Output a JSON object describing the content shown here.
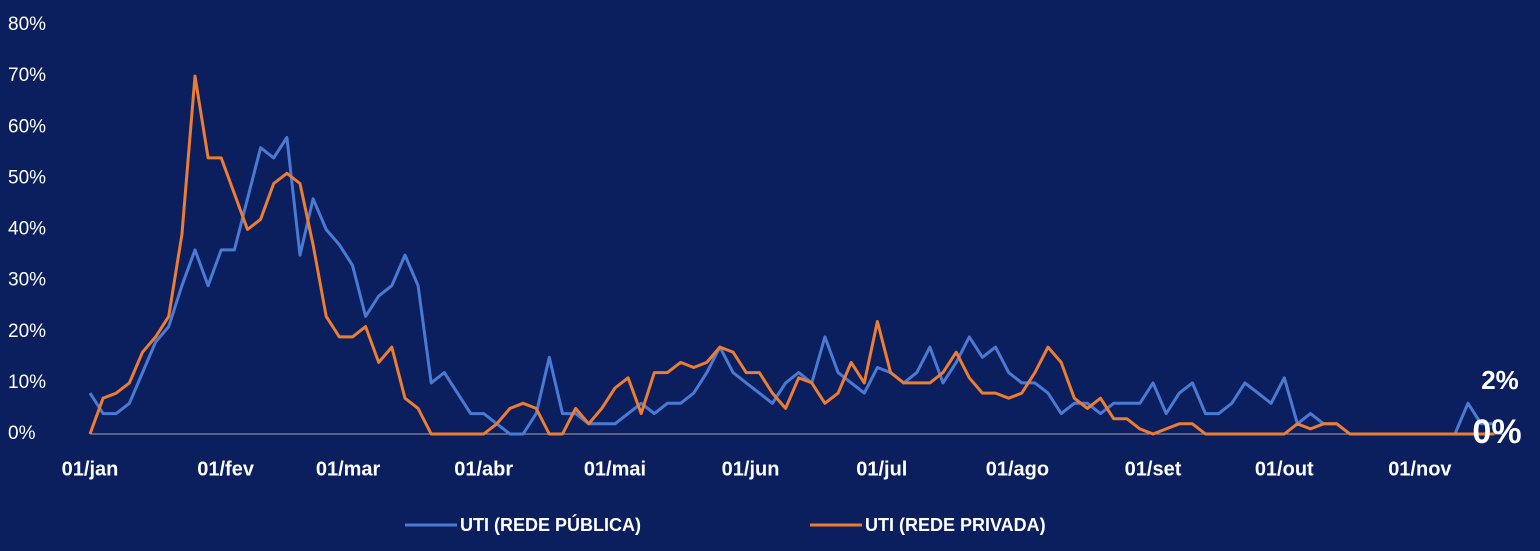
{
  "chart_data": {
    "type": "line",
    "x": [
      0,
      3,
      6,
      9,
      12,
      15,
      18,
      21,
      24,
      27,
      30,
      33,
      36,
      39,
      42,
      45,
      48,
      51,
      54,
      57,
      60,
      63,
      66,
      69,
      72,
      75,
      78,
      81,
      84,
      87,
      90,
      93,
      96,
      99,
      102,
      105,
      108,
      111,
      114,
      117,
      120,
      123,
      126,
      129,
      132,
      135,
      138,
      141,
      144,
      147,
      150,
      153,
      156,
      159,
      162,
      165,
      168,
      171,
      174,
      177,
      180,
      183,
      186,
      189,
      192,
      195,
      198,
      201,
      204,
      207,
      210,
      213,
      216,
      219,
      222,
      225,
      228,
      231,
      234,
      237,
      240,
      243,
      246,
      249,
      252,
      255,
      258,
      261,
      264,
      267,
      270,
      273,
      276,
      279,
      282,
      285,
      288,
      291,
      294,
      297,
      300,
      303,
      306,
      309,
      312,
      315,
      318,
      321
    ],
    "series": [
      {
        "name": "UTI (REDE PÚBLICA)",
        "color": "#4a7bd4",
        "values": [
          8,
          4,
          4,
          6,
          12,
          18,
          21,
          29,
          36,
          29,
          36,
          36,
          46,
          56,
          54,
          58,
          35,
          46,
          40,
          37,
          33,
          23,
          27,
          29,
          35,
          29,
          10,
          12,
          8,
          4,
          4,
          2,
          0,
          0,
          4,
          15,
          4,
          4,
          2,
          2,
          2,
          4,
          6,
          4,
          6,
          6,
          8,
          12,
          17,
          12,
          10,
          8,
          6,
          10,
          12,
          10,
          19,
          12,
          10,
          8,
          13,
          12,
          10,
          12,
          17,
          10,
          14,
          19,
          15,
          17,
          12,
          10,
          10,
          8,
          4,
          6,
          6,
          4,
          6,
          6,
          6,
          10,
          4,
          8,
          10,
          4,
          4,
          6,
          10,
          8,
          6,
          11,
          2,
          4,
          2,
          2,
          0,
          0,
          0,
          0,
          0,
          0,
          0,
          0,
          0,
          6,
          2,
          2
        ]
      },
      {
        "name": "UTI (REDE PRIVADA)",
        "color": "#ed7d31",
        "values": [
          0,
          7,
          8,
          10,
          16,
          19,
          23,
          39,
          70,
          54,
          54,
          47,
          40,
          42,
          49,
          51,
          49,
          37,
          23,
          19,
          19,
          21,
          14,
          17,
          7,
          5,
          0,
          0,
          0,
          0,
          0,
          2,
          5,
          6,
          5,
          0,
          0,
          5,
          2,
          5,
          9,
          11,
          4,
          12,
          12,
          14,
          13,
          14,
          17,
          16,
          12,
          12,
          8,
          5,
          11,
          10,
          6,
          8,
          14,
          10,
          22,
          12,
          10,
          10,
          10,
          12,
          16,
          11,
          8,
          8,
          7,
          8,
          12,
          17,
          14,
          7,
          5,
          7,
          3,
          3,
          1,
          0,
          1,
          2,
          2,
          0,
          0,
          0,
          0,
          0,
          0,
          0,
          2,
          1,
          2,
          2,
          0,
          0,
          0,
          0,
          0,
          0,
          0,
          0,
          0,
          0,
          0,
          0
        ]
      }
    ],
    "xlim": [
      0,
      323
    ],
    "xticks": [
      {
        "value": 0,
        "label": "01/jan"
      },
      {
        "value": 31,
        "label": "01/fev"
      },
      {
        "value": 59,
        "label": "01/mar"
      },
      {
        "value": 90,
        "label": "01/abr"
      },
      {
        "value": 120,
        "label": "01/mai"
      },
      {
        "value": 151,
        "label": "01/jun"
      },
      {
        "value": 181,
        "label": "01/jul"
      },
      {
        "value": 212,
        "label": "01/ago"
      },
      {
        "value": 243,
        "label": "01/set"
      },
      {
        "value": 273,
        "label": "01/out"
      },
      {
        "value": 304,
        "label": "01/nov"
      }
    ],
    "ylim": [
      0,
      80
    ],
    "yticks": [
      {
        "value": 0,
        "label": "0%"
      },
      {
        "value": 10,
        "label": "10%"
      },
      {
        "value": 20,
        "label": "20%"
      },
      {
        "value": 30,
        "label": "30%"
      },
      {
        "value": 40,
        "label": "40%"
      },
      {
        "value": 50,
        "label": "50%"
      },
      {
        "value": 60,
        "label": "60%"
      },
      {
        "value": 70,
        "label": "70%"
      },
      {
        "value": 80,
        "label": "80%"
      }
    ],
    "annotations": [
      "2%",
      "0%"
    ],
    "legend": "bottom"
  }
}
